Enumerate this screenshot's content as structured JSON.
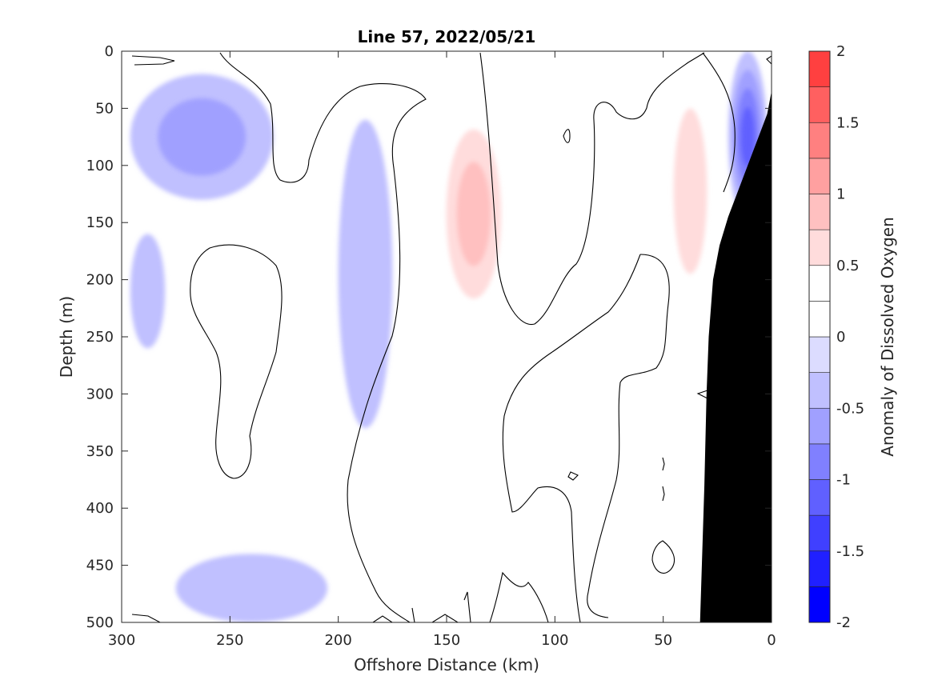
{
  "chart_data": {
    "type": "heatmap",
    "title": "Line 57, 2022/05/21",
    "xlabel": "Offshore Distance (km)",
    "ylabel": "Depth (m)",
    "colorbar_label": "Anomaly of Dissolved Oxygen",
    "xlim": [
      300,
      0
    ],
    "ylim": [
      500,
      0
    ],
    "x_reversed": true,
    "y_reversed": true,
    "x_ticks": [
      300,
      250,
      200,
      150,
      100,
      50,
      0
    ],
    "y_ticks": [
      0,
      50,
      100,
      150,
      200,
      250,
      300,
      350,
      400,
      450,
      500
    ],
    "colorbar": {
      "range": [
        -2,
        2
      ],
      "levels": [
        -2,
        -1.75,
        -1.5,
        -1.25,
        -1,
        -0.75,
        -0.5,
        -0.25,
        0,
        0.25,
        0.5,
        0.75,
        1,
        1.25,
        1.5,
        1.75,
        2
      ],
      "tick_values": [
        2,
        1.5,
        1,
        0.5,
        0,
        -0.5,
        -1,
        -1.5,
        -2
      ],
      "tick_labels": [
        "2",
        "1.5",
        "1",
        "0.5",
        "0",
        "-0.5",
        "-1",
        "-1.5",
        "-2"
      ],
      "colors": [
        "#0000ff",
        "#2020ff",
        "#4040ff",
        "#6060ff",
        "#8080ff",
        "#a0a0ff",
        "#c0c0ff",
        "#dcdcff",
        "#ffffff",
        "#ffffff",
        "#ffdcdc",
        "#ffc0c0",
        "#ffa0a0",
        "#ff8080",
        "#ff6060",
        "#ff4040",
        "#ff2020",
        "#ff0000"
      ]
    },
    "anomaly_features": [
      {
        "sign": "negative",
        "x_range_km": [
          296,
          230
        ],
        "depth_range_m": [
          20,
          130
        ],
        "min_value": -0.75
      },
      {
        "sign": "negative",
        "x_range_km": [
          296,
          280
        ],
        "depth_range_m": [
          160,
          260
        ],
        "min_value": -0.5
      },
      {
        "sign": "negative",
        "x_range_km": [
          200,
          175
        ],
        "depth_range_m": [
          60,
          330
        ],
        "min_value": -0.5
      },
      {
        "sign": "negative",
        "x_range_km": [
          275,
          205
        ],
        "depth_range_m": [
          440,
          500
        ],
        "min_value": -0.25
      },
      {
        "sign": "positive",
        "x_range_km": [
          155,
          120
        ],
        "depth_range_m": [
          40,
          245
        ],
        "max_value": 1.0
      },
      {
        "sign": "positive",
        "x_range_km": [
          50,
          25
        ],
        "depth_range_m": [
          5,
          240
        ],
        "max_value": 0.75
      },
      {
        "sign": "negative",
        "x_range_km": [
          20,
          2
        ],
        "depth_range_m": [
          0,
          150
        ],
        "min_value": -1.25
      }
    ],
    "bathymetry": {
      "offshore_km": [
        0,
        2,
        5,
        10,
        15,
        20,
        24,
        27,
        29,
        30,
        31,
        32,
        33
      ],
      "depth_m": [
        35,
        55,
        70,
        95,
        120,
        145,
        170,
        200,
        250,
        300,
        380,
        440,
        500
      ]
    }
  }
}
